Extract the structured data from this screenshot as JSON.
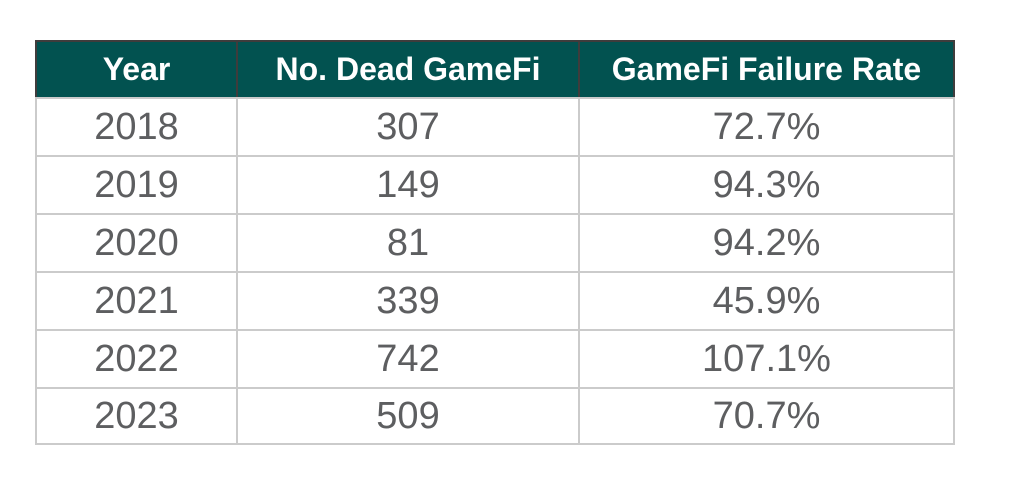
{
  "chart_data": {
    "type": "table",
    "columns": [
      "Year",
      "No. Dead GameFi",
      "GameFi Failure Rate"
    ],
    "rows": [
      [
        "2018",
        "307",
        "72.7%"
      ],
      [
        "2019",
        "149",
        "94.3%"
      ],
      [
        "2020",
        "81",
        "94.2%"
      ],
      [
        "2021",
        "339",
        "45.9%"
      ],
      [
        "2022",
        "742",
        "107.1%"
      ],
      [
        "2023",
        "509",
        "70.7%"
      ]
    ],
    "title": "",
    "legend": null,
    "notes": "Static data table; no axes. Dead GameFi counts and failure rate percentage per year, 2018-2023."
  },
  "colors": {
    "header_bg": "#025250",
    "header_text": "#ffffff",
    "header_border": "#3f3c3c",
    "body_text": "#5d5e60",
    "grid": "#cbcbcb",
    "page_bg": "#ffffff"
  }
}
